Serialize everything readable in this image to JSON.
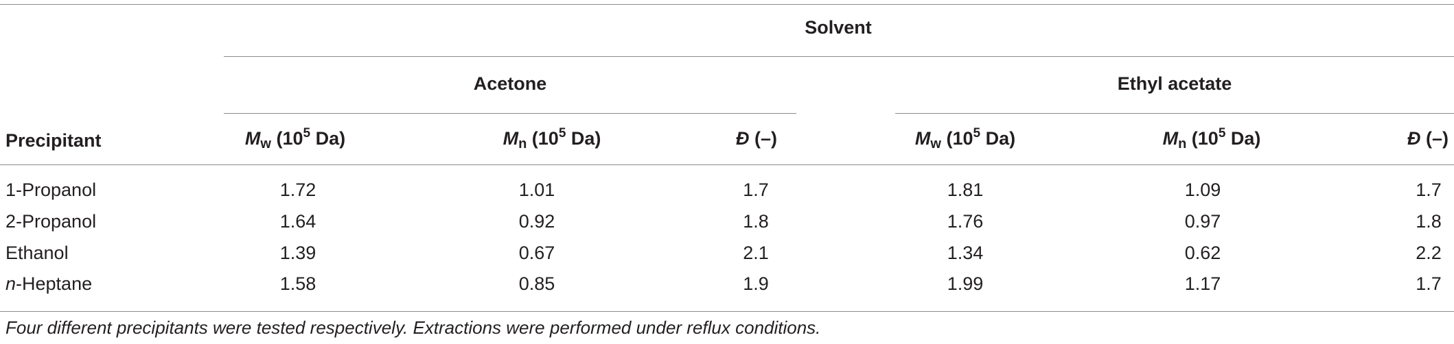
{
  "table": {
    "spanner": "Solvent",
    "groups": [
      "Acetone",
      "Ethyl acetate"
    ],
    "row_header": "Precipitant",
    "columns": [
      {
        "sym": "M",
        "sub": "w",
        "pre": " (10",
        "sup": "5",
        "post": " Da)"
      },
      {
        "sym": "M",
        "sub": "n",
        "pre": " (10",
        "sup": "5",
        "post": " Da)"
      },
      {
        "sym": "Đ",
        "sub": "",
        "pre": " (–)",
        "sup": "",
        "post": ""
      },
      {
        "sym": "M",
        "sub": "w",
        "pre": " (10",
        "sup": "5",
        "post": " Da)"
      },
      {
        "sym": "M",
        "sub": "n",
        "pre": " (10",
        "sup": "5",
        "post": " Da)"
      },
      {
        "sym": "Đ",
        "sub": "",
        "pre": " (–)",
        "sup": "",
        "post": ""
      }
    ],
    "rows": [
      {
        "prefix": "",
        "name": "1-Propanol",
        "values": [
          "1.72",
          "1.01",
          "1.7",
          "1.81",
          "1.09",
          "1.7"
        ]
      },
      {
        "prefix": "",
        "name": "2-Propanol",
        "values": [
          "1.64",
          "0.92",
          "1.8",
          "1.76",
          "0.97",
          "1.8"
        ]
      },
      {
        "prefix": "",
        "name": "Ethanol",
        "values": [
          "1.39",
          "0.67",
          "2.1",
          "1.34",
          "0.62",
          "2.2"
        ]
      },
      {
        "prefix": "n",
        "name": "-Heptane",
        "values": [
          "1.58",
          "0.85",
          "1.9",
          "1.99",
          "1.17",
          "1.7"
        ]
      }
    ],
    "footnote": "Four different precipitants were tested respectively. Extractions were performed under reflux conditions."
  }
}
